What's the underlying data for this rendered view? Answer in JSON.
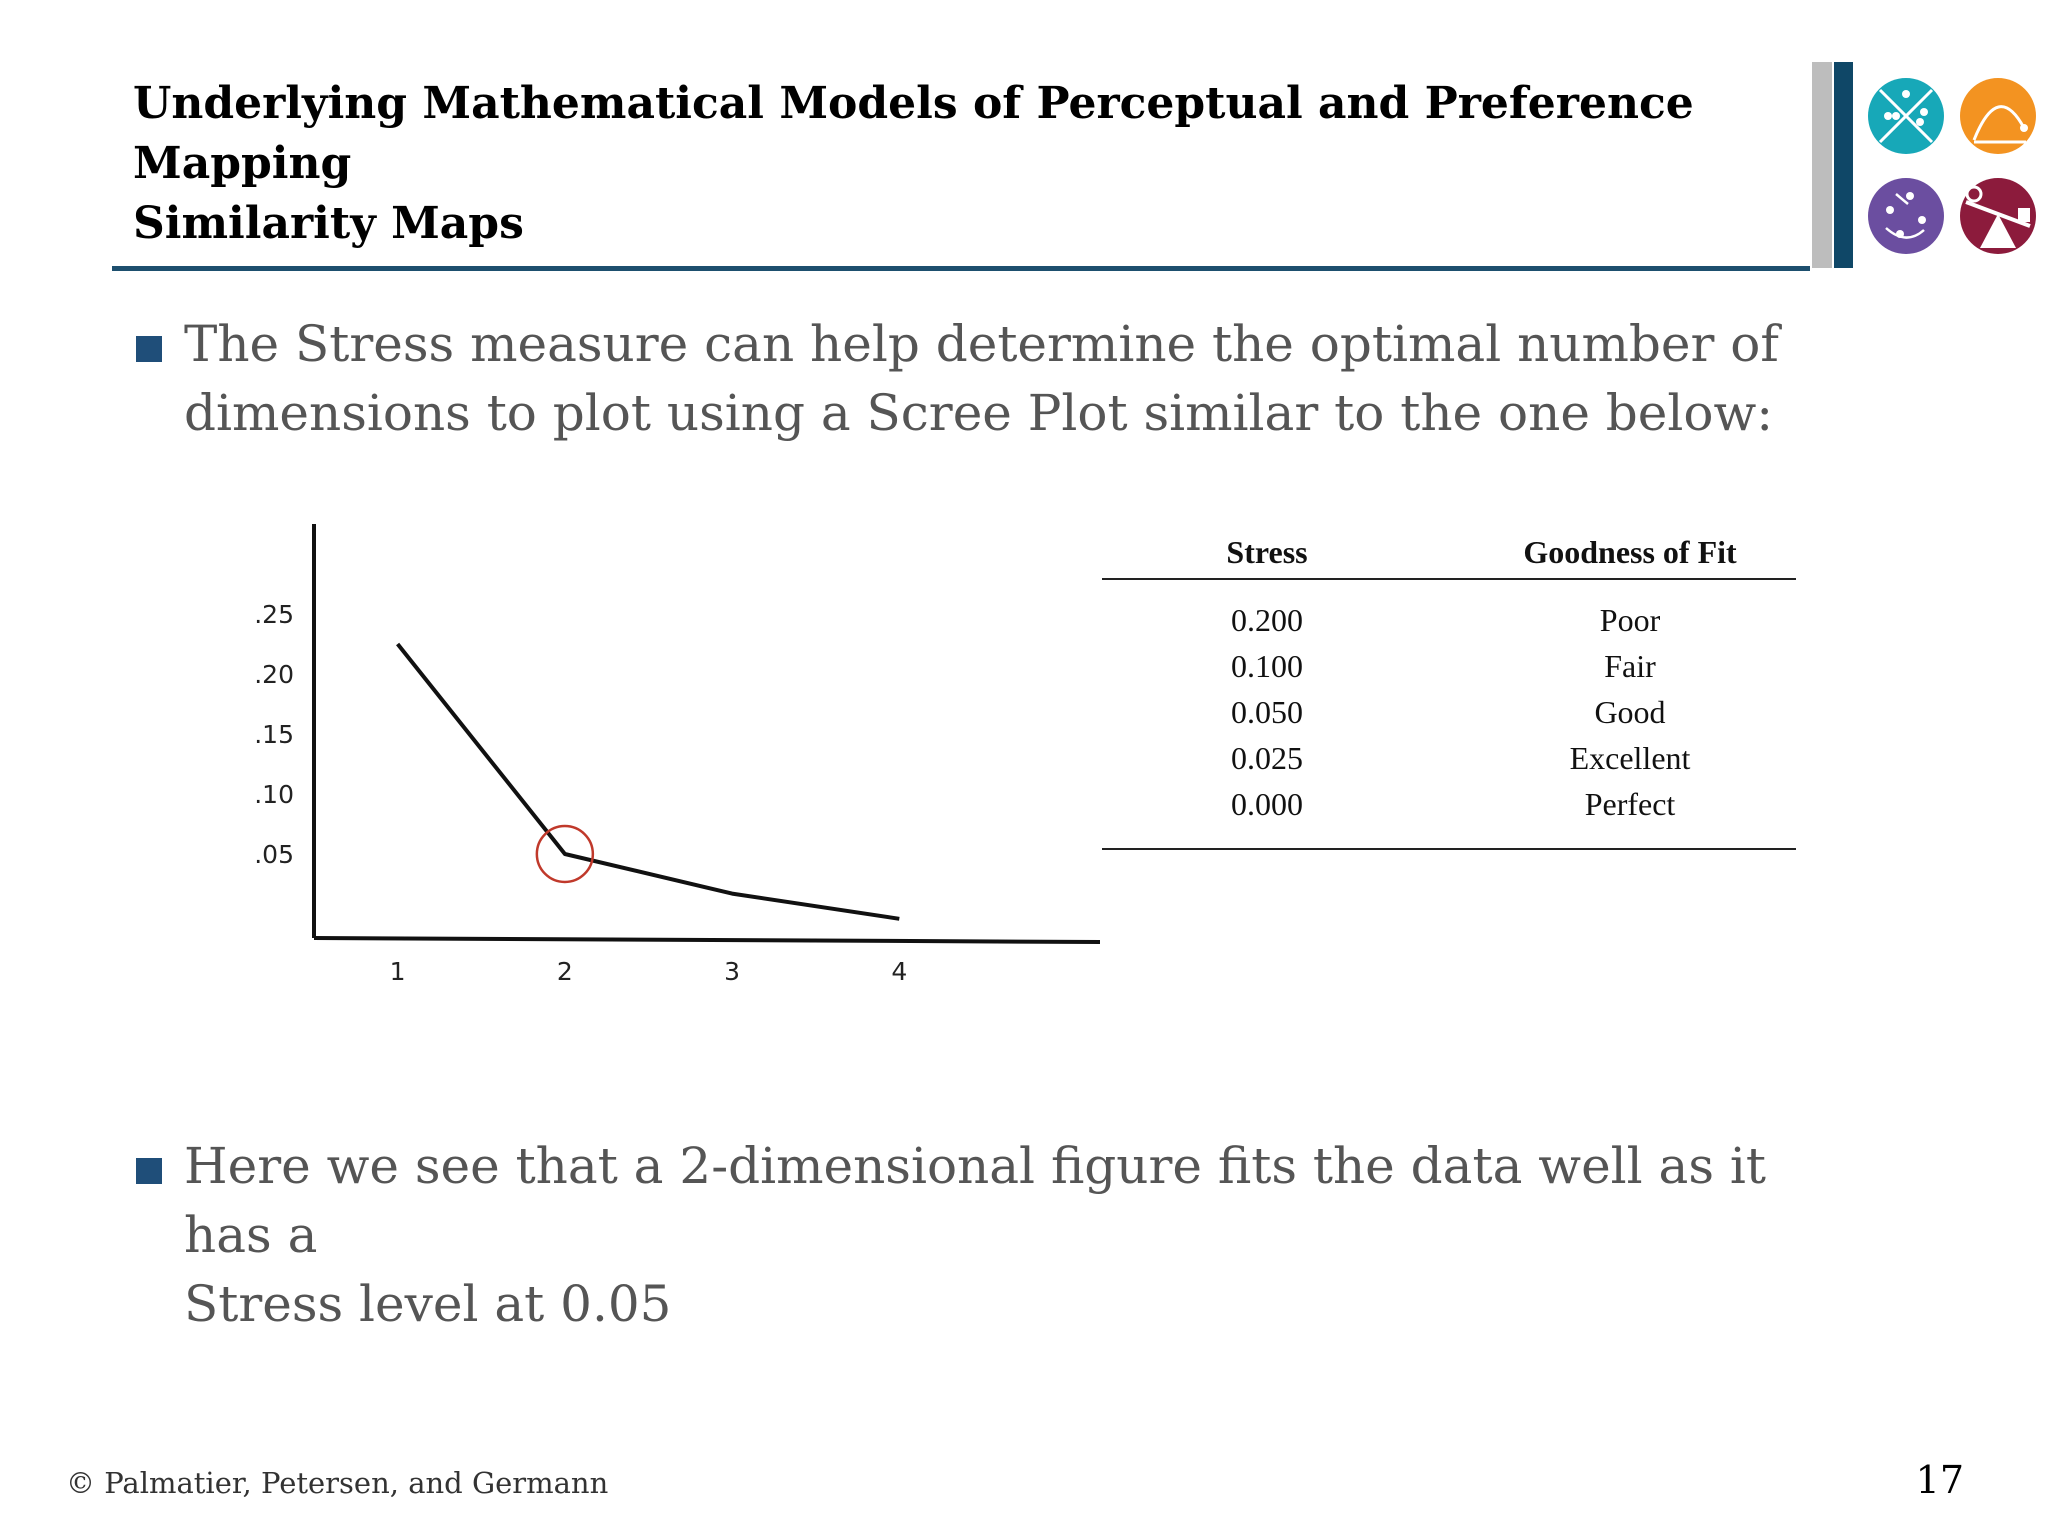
{
  "header": {
    "title_line1": "Underlying Mathematical Models of Perceptual and Preference Mapping",
    "title_line2": "Similarity Maps"
  },
  "bullets": [
    {
      "line1": "The Stress measure can help determine the optimal number of",
      "line2": "dimensions to plot using a Scree Plot similar to the one below:"
    },
    {
      "line1": "Here we see that a 2-dimensional figure fits the data well as it has a",
      "line2": "Stress level at 0.05"
    }
  ],
  "chart_data": {
    "type": "line",
    "title": "",
    "xlabel": "",
    "ylabel": "",
    "x": [
      1,
      2,
      3,
      4
    ],
    "x_tick_labels": [
      "1",
      "2",
      "3",
      "4"
    ],
    "y_tick_values": [
      0.05,
      0.1,
      0.15,
      0.2,
      0.25
    ],
    "y_tick_labels": [
      ".05",
      ".10",
      ".15",
      ".20",
      ".25"
    ],
    "series": [
      {
        "values": [
          0.225,
          0.05,
          0.017,
          -0.004
        ]
      }
    ],
    "ylim": [
      -0.02,
      0.32
    ],
    "xlim": [
      0.5,
      5.2
    ],
    "highlight_point": {
      "x": 2,
      "y": 0.05
    },
    "grid": false,
    "colors": {
      "line": "#111111",
      "axis": "#111111",
      "highlight": "#c0392b"
    }
  },
  "stress_table": {
    "headers": [
      "Stress",
      "Goodness of Fit"
    ],
    "rows": [
      [
        "0.200",
        "Poor"
      ],
      [
        "0.100",
        "Fair"
      ],
      [
        "0.050",
        "Good"
      ],
      [
        "0.025",
        "Excellent"
      ],
      [
        "0.000",
        "Perfect"
      ]
    ]
  },
  "footer": {
    "copyright": "© Palmatier, Petersen, and Germann",
    "page_number": "17"
  },
  "logo": {
    "icons": [
      "scatter-dots-icon",
      "curve-arc-icon",
      "cluster-arrows-icon",
      "seesaw-balance-icon"
    ],
    "colors": {
      "teal": "#17a8b8",
      "orange": "#f39321",
      "purple": "#6b4ea0",
      "maroon": "#8c1b3c"
    }
  }
}
